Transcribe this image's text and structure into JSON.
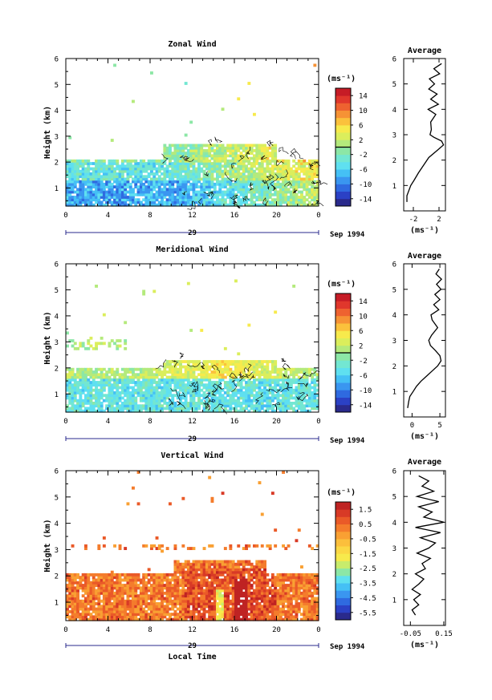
{
  "figure": {
    "x_tick_labels": [
      "0",
      "4",
      "8",
      "12",
      "16",
      "20",
      "0"
    ],
    "date_day": "29",
    "date_month_year": "Sep 1994",
    "colorbar_unit": "(ms⁻¹)",
    "avg_unit": "(ms⁻¹)",
    "bottom_xlabel": "Local Time",
    "ylabel": "Height (km)",
    "avg_title": "Average"
  },
  "chart_data": [
    {
      "type": "heatmap",
      "title": "Zonal Wind",
      "xlabel": "",
      "ylabel": "Height (km)",
      "x_range_hours": [
        0,
        24
      ],
      "y_range_km": [
        0.3,
        6
      ],
      "y_ticks": [
        1,
        2,
        3,
        4,
        5,
        6
      ],
      "colorbar": {
        "unit": "(ms⁻¹)",
        "range": [
          -16,
          16
        ],
        "tick_labels": [
          "14",
          "10",
          "6",
          "2",
          "-2",
          "-6",
          "-10",
          "-14"
        ],
        "tick_values": [
          14,
          10,
          6,
          2,
          -2,
          -6,
          -10,
          -14
        ],
        "zero_line": true
      },
      "data_coverage": "dense below ~2.7 km, sparse above",
      "average_profile": {
        "title": "Average",
        "unit": "(ms⁻¹)",
        "x_range": [
          -3.5,
          3
        ],
        "x_tick_labels": [
          "-2",
          "2"
        ],
        "x_ticks": [
          -2,
          2
        ],
        "height_km": [
          0.35,
          0.6,
          0.8,
          1.0,
          1.2,
          1.5,
          1.8,
          2.1,
          2.4,
          2.6,
          2.75,
          2.9,
          3.0,
          3.2,
          3.5,
          3.8,
          4.0,
          4.2,
          4.4,
          4.6,
          4.8,
          5.0,
          5.2,
          5.4,
          5.6,
          5.8
        ],
        "value": [
          -3.0,
          -3.0,
          -2.7,
          -2.4,
          -1.9,
          -1.2,
          -0.4,
          0.4,
          1.8,
          2.7,
          2.4,
          1.2,
          0.6,
          0.8,
          0.7,
          1.5,
          0.3,
          1.9,
          0.7,
          1.7,
          0.4,
          1.3,
          0.5,
          2.1,
          1.2,
          2.4
        ]
      }
    },
    {
      "type": "heatmap",
      "title": "Meridional Wind",
      "xlabel": "",
      "ylabel": "Height (km)",
      "x_range_hours": [
        0,
        24
      ],
      "y_range_km": [
        0.3,
        6
      ],
      "y_ticks": [
        1,
        2,
        3,
        4,
        5,
        6
      ],
      "colorbar": {
        "unit": "(ms⁻¹)",
        "range": [
          -16,
          16
        ],
        "tick_labels": [
          "14",
          "10",
          "6",
          "2",
          "-2",
          "-6",
          "-10",
          "-14"
        ],
        "tick_values": [
          14,
          10,
          6,
          2,
          -2,
          -6,
          -10,
          -14
        ],
        "zero_line": true
      },
      "data_coverage": "dense below ~2.3 km, sparse above",
      "average_profile": {
        "title": "Average",
        "unit": "(ms⁻¹)",
        "x_range": [
          -1.5,
          6
        ],
        "x_tick_labels": [
          "0",
          "5"
        ],
        "x_ticks": [
          0,
          5
        ],
        "height_km": [
          0.35,
          0.6,
          0.8,
          1.0,
          1.2,
          1.4,
          1.6,
          1.8,
          2.0,
          2.2,
          2.4,
          2.6,
          2.8,
          3.0,
          3.2,
          3.5,
          3.8,
          4.0,
          4.2,
          4.4,
          4.6,
          4.8,
          5.0,
          5.2,
          5.4,
          5.6,
          5.8
        ],
        "value": [
          -0.8,
          -0.6,
          -0.4,
          0.2,
          0.8,
          1.6,
          2.6,
          3.6,
          4.6,
          5.2,
          5.0,
          4.2,
          3.3,
          3.0,
          3.5,
          4.6,
          3.6,
          3.4,
          4.8,
          3.9,
          5.0,
          4.1,
          5.2,
          4.4,
          5.3,
          4.3,
          4.9
        ]
      }
    },
    {
      "type": "heatmap",
      "title": "Vertical Wind",
      "xlabel": "Local Time",
      "ylabel": "Height (km)",
      "x_range_hours": [
        0,
        24
      ],
      "y_range_km": [
        0.3,
        6
      ],
      "y_ticks": [
        1,
        2,
        3,
        4,
        5,
        6
      ],
      "colorbar": {
        "unit": "(ms⁻¹)",
        "range": [
          -6,
          2
        ],
        "tick_labels": [
          "1.5",
          "0.5",
          "-0.5",
          "-1.5",
          "-2.5",
          "-3.5",
          "-4.5",
          "-5.5"
        ],
        "tick_values": [
          1.5,
          0.5,
          -0.5,
          -1.5,
          -2.5,
          -3.5,
          -4.5,
          -5.5
        ],
        "zero_line": false
      },
      "data_coverage": "dense below ~2.5 km, sparse above",
      "average_profile": {
        "title": "Average",
        "unit": "(ms⁻¹)",
        "x_range": [
          -0.09,
          0.16
        ],
        "x_tick_labels": [
          "-0.05",
          "0.15"
        ],
        "x_ticks": [
          -0.05,
          0.15
        ],
        "height_km": [
          0.4,
          0.6,
          0.8,
          1.0,
          1.2,
          1.4,
          1.6,
          1.8,
          2.0,
          2.2,
          2.4,
          2.6,
          2.8,
          3.0,
          3.2,
          3.4,
          3.6,
          3.8,
          4.0,
          4.2,
          4.4,
          4.6,
          4.8,
          5.0,
          5.2,
          5.4,
          5.6,
          5.8
        ],
        "value": [
          -0.02,
          -0.04,
          0.0,
          -0.03,
          0.01,
          -0.04,
          0.0,
          0.03,
          -0.02,
          0.04,
          0.02,
          0.07,
          -0.01,
          0.06,
          0.1,
          0.01,
          0.13,
          -0.02,
          0.15,
          0.03,
          0.08,
          0.0,
          0.12,
          -0.01,
          0.09,
          0.02,
          0.06,
          0.0
        ]
      }
    }
  ]
}
